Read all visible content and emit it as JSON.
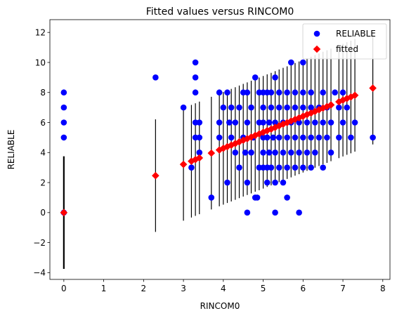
{
  "chart_data": {
    "type": "scatter",
    "title": "Fitted values versus RINCOM0",
    "xlabel": "RINCOM0",
    "ylabel": "RELIABLE",
    "xlim": [
      -0.35,
      8.18
    ],
    "ylim": [
      -4.45,
      12.85
    ],
    "xticks": [
      0,
      1,
      2,
      3,
      4,
      5,
      6,
      7,
      8
    ],
    "yticks": [
      -4,
      -2,
      0,
      2,
      4,
      6,
      8,
      10,
      12
    ],
    "legend": {
      "placement": "top-right"
    },
    "fit": {
      "intercept": 0.0,
      "slope": 1.07
    },
    "series": [
      {
        "name": "RELIABLE",
        "marker": "circle",
        "color": "#0000ff",
        "points": [
          [
            0,
            0
          ],
          [
            0,
            5
          ],
          [
            0,
            6
          ],
          [
            0,
            7
          ],
          [
            0,
            8
          ],
          [
            2.3,
            9
          ],
          [
            3.0,
            7
          ],
          [
            3.2,
            3
          ],
          [
            3.3,
            5
          ],
          [
            3.3,
            6
          ],
          [
            3.3,
            8
          ],
          [
            3.3,
            9
          ],
          [
            3.3,
            10
          ],
          [
            3.4,
            4
          ],
          [
            3.4,
            5
          ],
          [
            3.4,
            6
          ],
          [
            3.7,
            1
          ],
          [
            3.9,
            5
          ],
          [
            3.9,
            6
          ],
          [
            3.9,
            8
          ],
          [
            4.0,
            7
          ],
          [
            4.1,
            2
          ],
          [
            4.1,
            8
          ],
          [
            4.15,
            6
          ],
          [
            4.2,
            5
          ],
          [
            4.2,
            7
          ],
          [
            4.3,
            4
          ],
          [
            4.3,
            6
          ],
          [
            4.4,
            3
          ],
          [
            4.4,
            7
          ],
          [
            4.5,
            5
          ],
          [
            4.5,
            8
          ],
          [
            4.55,
            4
          ],
          [
            4.6,
            0
          ],
          [
            4.6,
            2
          ],
          [
            4.6,
            6
          ],
          [
            4.6,
            8
          ],
          [
            4.7,
            4
          ],
          [
            4.7,
            7
          ],
          [
            4.75,
            5
          ],
          [
            4.8,
            1
          ],
          [
            4.8,
            9
          ],
          [
            4.85,
            1
          ],
          [
            4.9,
            3
          ],
          [
            4.9,
            6
          ],
          [
            4.9,
            8
          ],
          [
            5.0,
            3
          ],
          [
            5.0,
            4
          ],
          [
            5.0,
            5
          ],
          [
            5.0,
            6
          ],
          [
            5.0,
            7
          ],
          [
            5.0,
            8
          ],
          [
            5.1,
            2
          ],
          [
            5.1,
            3
          ],
          [
            5.1,
            5
          ],
          [
            5.1,
            8
          ],
          [
            5.15,
            4
          ],
          [
            5.15,
            6
          ],
          [
            5.2,
            3
          ],
          [
            5.2,
            7
          ],
          [
            5.2,
            8
          ],
          [
            5.25,
            5
          ],
          [
            5.3,
            0
          ],
          [
            5.3,
            2
          ],
          [
            5.3,
            4
          ],
          [
            5.3,
            6
          ],
          [
            5.3,
            9
          ],
          [
            5.4,
            3
          ],
          [
            5.4,
            5
          ],
          [
            5.4,
            7
          ],
          [
            5.4,
            8
          ],
          [
            5.5,
            2
          ],
          [
            5.5,
            4
          ],
          [
            5.5,
            6
          ],
          [
            5.6,
            1
          ],
          [
            5.6,
            3
          ],
          [
            5.6,
            5
          ],
          [
            5.6,
            7
          ],
          [
            5.6,
            8
          ],
          [
            5.7,
            4
          ],
          [
            5.7,
            6
          ],
          [
            5.7,
            10
          ],
          [
            5.8,
            3
          ],
          [
            5.8,
            5
          ],
          [
            5.8,
            7
          ],
          [
            5.8,
            8
          ],
          [
            5.9,
            0
          ],
          [
            5.9,
            4
          ],
          [
            5.9,
            6
          ],
          [
            6.0,
            3
          ],
          [
            6.0,
            5
          ],
          [
            6.0,
            7
          ],
          [
            6.0,
            8
          ],
          [
            6.0,
            10
          ],
          [
            6.1,
            4
          ],
          [
            6.1,
            6
          ],
          [
            6.2,
            3
          ],
          [
            6.2,
            5
          ],
          [
            6.2,
            7
          ],
          [
            6.2,
            8
          ],
          [
            6.3,
            4
          ],
          [
            6.3,
            6
          ],
          [
            6.4,
            5
          ],
          [
            6.4,
            7
          ],
          [
            6.5,
            3
          ],
          [
            6.5,
            6
          ],
          [
            6.5,
            8
          ],
          [
            6.6,
            5
          ],
          [
            6.6,
            7
          ],
          [
            6.7,
            4
          ],
          [
            6.7,
            6
          ],
          [
            6.8,
            8
          ],
          [
            6.9,
            5
          ],
          [
            6.9,
            7
          ],
          [
            7.0,
            6
          ],
          [
            7.0,
            8
          ],
          [
            7.1,
            7
          ],
          [
            7.2,
            5
          ],
          [
            7.3,
            6
          ],
          [
            7.75,
            5
          ]
        ]
      },
      {
        "name": "fitted",
        "marker": "diamond",
        "color": "#ff0000",
        "points": [
          [
            0,
            0
          ],
          [
            2.3,
            2.46
          ],
          [
            3.0,
            3.21
          ],
          [
            3.2,
            3.42
          ],
          [
            3.3,
            3.53
          ],
          [
            3.4,
            3.64
          ],
          [
            3.7,
            3.96
          ],
          [
            3.9,
            4.17
          ],
          [
            4.0,
            4.28
          ],
          [
            4.1,
            4.39
          ],
          [
            4.2,
            4.49
          ],
          [
            4.3,
            4.6
          ],
          [
            4.4,
            4.71
          ],
          [
            4.5,
            4.82
          ],
          [
            4.6,
            4.92
          ],
          [
            4.7,
            5.03
          ],
          [
            4.8,
            5.14
          ],
          [
            4.9,
            5.24
          ],
          [
            5.0,
            5.35
          ],
          [
            5.1,
            5.46
          ],
          [
            5.2,
            5.56
          ],
          [
            5.3,
            5.67
          ],
          [
            5.4,
            5.78
          ],
          [
            5.5,
            5.89
          ],
          [
            5.6,
            5.99
          ],
          [
            5.7,
            6.1
          ],
          [
            5.8,
            6.21
          ],
          [
            5.9,
            6.31
          ],
          [
            6.0,
            6.42
          ],
          [
            6.1,
            6.53
          ],
          [
            6.2,
            6.63
          ],
          [
            6.3,
            6.74
          ],
          [
            6.4,
            6.85
          ],
          [
            6.5,
            6.96
          ],
          [
            6.6,
            7.06
          ],
          [
            6.7,
            7.17
          ],
          [
            6.9,
            7.38
          ],
          [
            7.0,
            7.49
          ],
          [
            7.1,
            7.6
          ],
          [
            7.2,
            7.7
          ],
          [
            7.3,
            7.81
          ],
          [
            7.75,
            8.29
          ]
        ]
      }
    ],
    "error_bars": {
      "color": "#000000",
      "halfwidth": 3.75
    }
  }
}
